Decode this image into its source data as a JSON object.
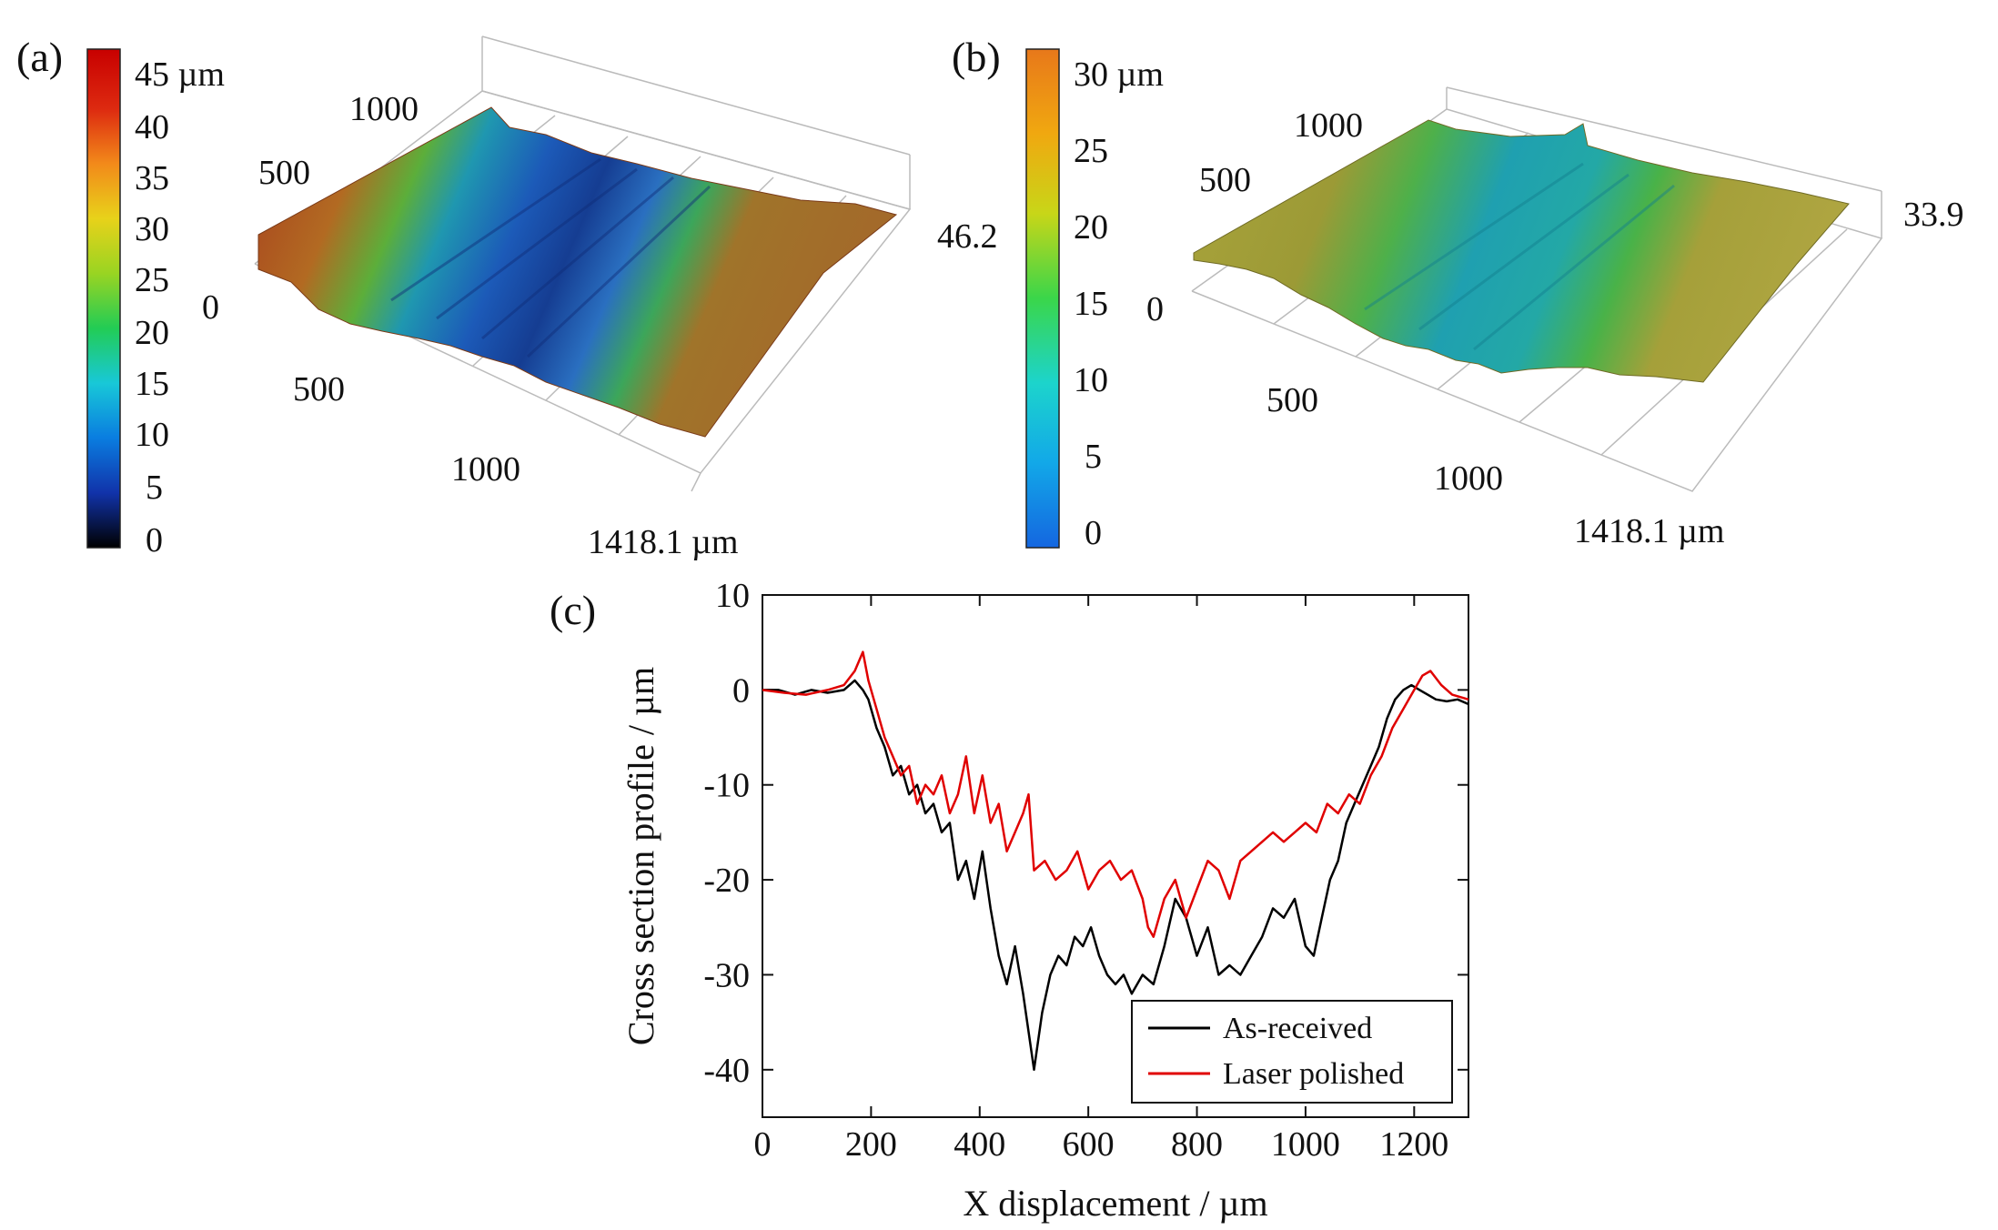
{
  "figure": {
    "panel_a": {
      "label": "(a)",
      "colorbar": {
        "ticks": [
          "45 µm",
          "40",
          "35",
          "30",
          "25",
          "20",
          "15",
          "10",
          "5",
          "0"
        ],
        "min": 0,
        "max": 45,
        "colormap": [
          "#000000",
          "#1133aa",
          "#0a7de0",
          "#18c8d8",
          "#22cc55",
          "#99d422",
          "#e8d21a",
          "#f28a1a",
          "#dd2a10",
          "#c80000"
        ]
      },
      "surface": {
        "y_ticks": [
          "0",
          "500",
          "1000"
        ],
        "x_ticks": [
          "500",
          "1000",
          "1418.1 µm"
        ],
        "z_max": "46.2"
      }
    },
    "panel_b": {
      "label": "(b)",
      "colorbar": {
        "ticks": [
          "30 µm",
          "25",
          "20",
          "15",
          "10",
          "5",
          "0"
        ],
        "min": 0,
        "max": 30,
        "colormap": [
          "#1466e0",
          "#12a8e8",
          "#1cd4cc",
          "#3ad64a",
          "#c8d618",
          "#f0a810",
          "#e8781a"
        ]
      },
      "surface": {
        "y_ticks": [
          "0",
          "500",
          "1000"
        ],
        "x_ticks": [
          "500",
          "1000",
          "1418.1 µm"
        ],
        "z_max": "33.9"
      }
    }
  },
  "chart_data": {
    "type": "line",
    "panel_label": "(c)",
    "title": "",
    "xlabel": "X displacement / µm",
    "ylabel": "Cross section profile / µm",
    "xlim": [
      0,
      1300
    ],
    "ylim": [
      -45,
      10
    ],
    "x_ticks": [
      0,
      200,
      400,
      600,
      800,
      1000,
      1200
    ],
    "y_ticks": [
      10,
      0,
      -10,
      -20,
      -30,
      -40
    ],
    "grid": false,
    "legend_position": "bottom-right",
    "series": [
      {
        "name": "As-received",
        "color": "#000000",
        "x": [
          0,
          30,
          60,
          90,
          120,
          150,
          170,
          185,
          195,
          210,
          225,
          240,
          255,
          270,
          285,
          300,
          315,
          330,
          345,
          360,
          375,
          390,
          405,
          420,
          435,
          450,
          465,
          480,
          490,
          500,
          515,
          530,
          545,
          560,
          575,
          590,
          605,
          620,
          635,
          650,
          665,
          680,
          700,
          720,
          740,
          760,
          780,
          800,
          820,
          840,
          860,
          880,
          900,
          920,
          940,
          960,
          980,
          1000,
          1015,
          1030,
          1045,
          1060,
          1075,
          1090,
          1105,
          1120,
          1135,
          1150,
          1165,
          1180,
          1195,
          1210,
          1225,
          1240,
          1260,
          1280,
          1300
        ],
        "values": [
          0,
          0,
          -0.5,
          0,
          -0.3,
          0,
          1,
          0,
          -1,
          -4,
          -6,
          -9,
          -8,
          -11,
          -10,
          -13,
          -12,
          -15,
          -14,
          -20,
          -18,
          -22,
          -17,
          -23,
          -28,
          -31,
          -27,
          -32,
          -36,
          -40,
          -34,
          -30,
          -28,
          -29,
          -26,
          -27,
          -25,
          -28,
          -30,
          -31,
          -30,
          -32,
          -30,
          -31,
          -27,
          -22,
          -24,
          -28,
          -25,
          -30,
          -29,
          -30,
          -28,
          -26,
          -23,
          -24,
          -22,
          -27,
          -28,
          -24,
          -20,
          -18,
          -14,
          -12,
          -10,
          -8,
          -6,
          -3,
          -1,
          0,
          0.5,
          0,
          -0.5,
          -1,
          -1.2,
          -1,
          -1.5
        ]
      },
      {
        "name": "Laser polished",
        "color": "#e00000",
        "x": [
          0,
          40,
          80,
          120,
          150,
          170,
          185,
          195,
          210,
          225,
          240,
          255,
          270,
          285,
          300,
          315,
          330,
          345,
          360,
          375,
          390,
          405,
          420,
          435,
          450,
          465,
          480,
          490,
          500,
          520,
          540,
          560,
          580,
          600,
          620,
          640,
          660,
          680,
          700,
          710,
          720,
          740,
          760,
          780,
          800,
          820,
          840,
          860,
          880,
          900,
          920,
          940,
          960,
          980,
          1000,
          1020,
          1040,
          1060,
          1080,
          1100,
          1120,
          1140,
          1160,
          1180,
          1200,
          1215,
          1230,
          1250,
          1270,
          1300
        ],
        "values": [
          0,
          -0.3,
          -0.5,
          0,
          0.5,
          2,
          4,
          1,
          -2,
          -5,
          -7,
          -9,
          -8,
          -12,
          -10,
          -11,
          -9,
          -13,
          -11,
          -7,
          -13,
          -9,
          -14,
          -12,
          -17,
          -15,
          -13,
          -11,
          -19,
          -18,
          -20,
          -19,
          -17,
          -21,
          -19,
          -18,
          -20,
          -19,
          -22,
          -25,
          -26,
          -22,
          -20,
          -24,
          -21,
          -18,
          -19,
          -22,
          -18,
          -17,
          -16,
          -15,
          -16,
          -15,
          -14,
          -15,
          -12,
          -13,
          -11,
          -12,
          -9,
          -7,
          -4,
          -2,
          0,
          1.5,
          2,
          0.5,
          -0.5,
          -1
        ]
      }
    ]
  }
}
